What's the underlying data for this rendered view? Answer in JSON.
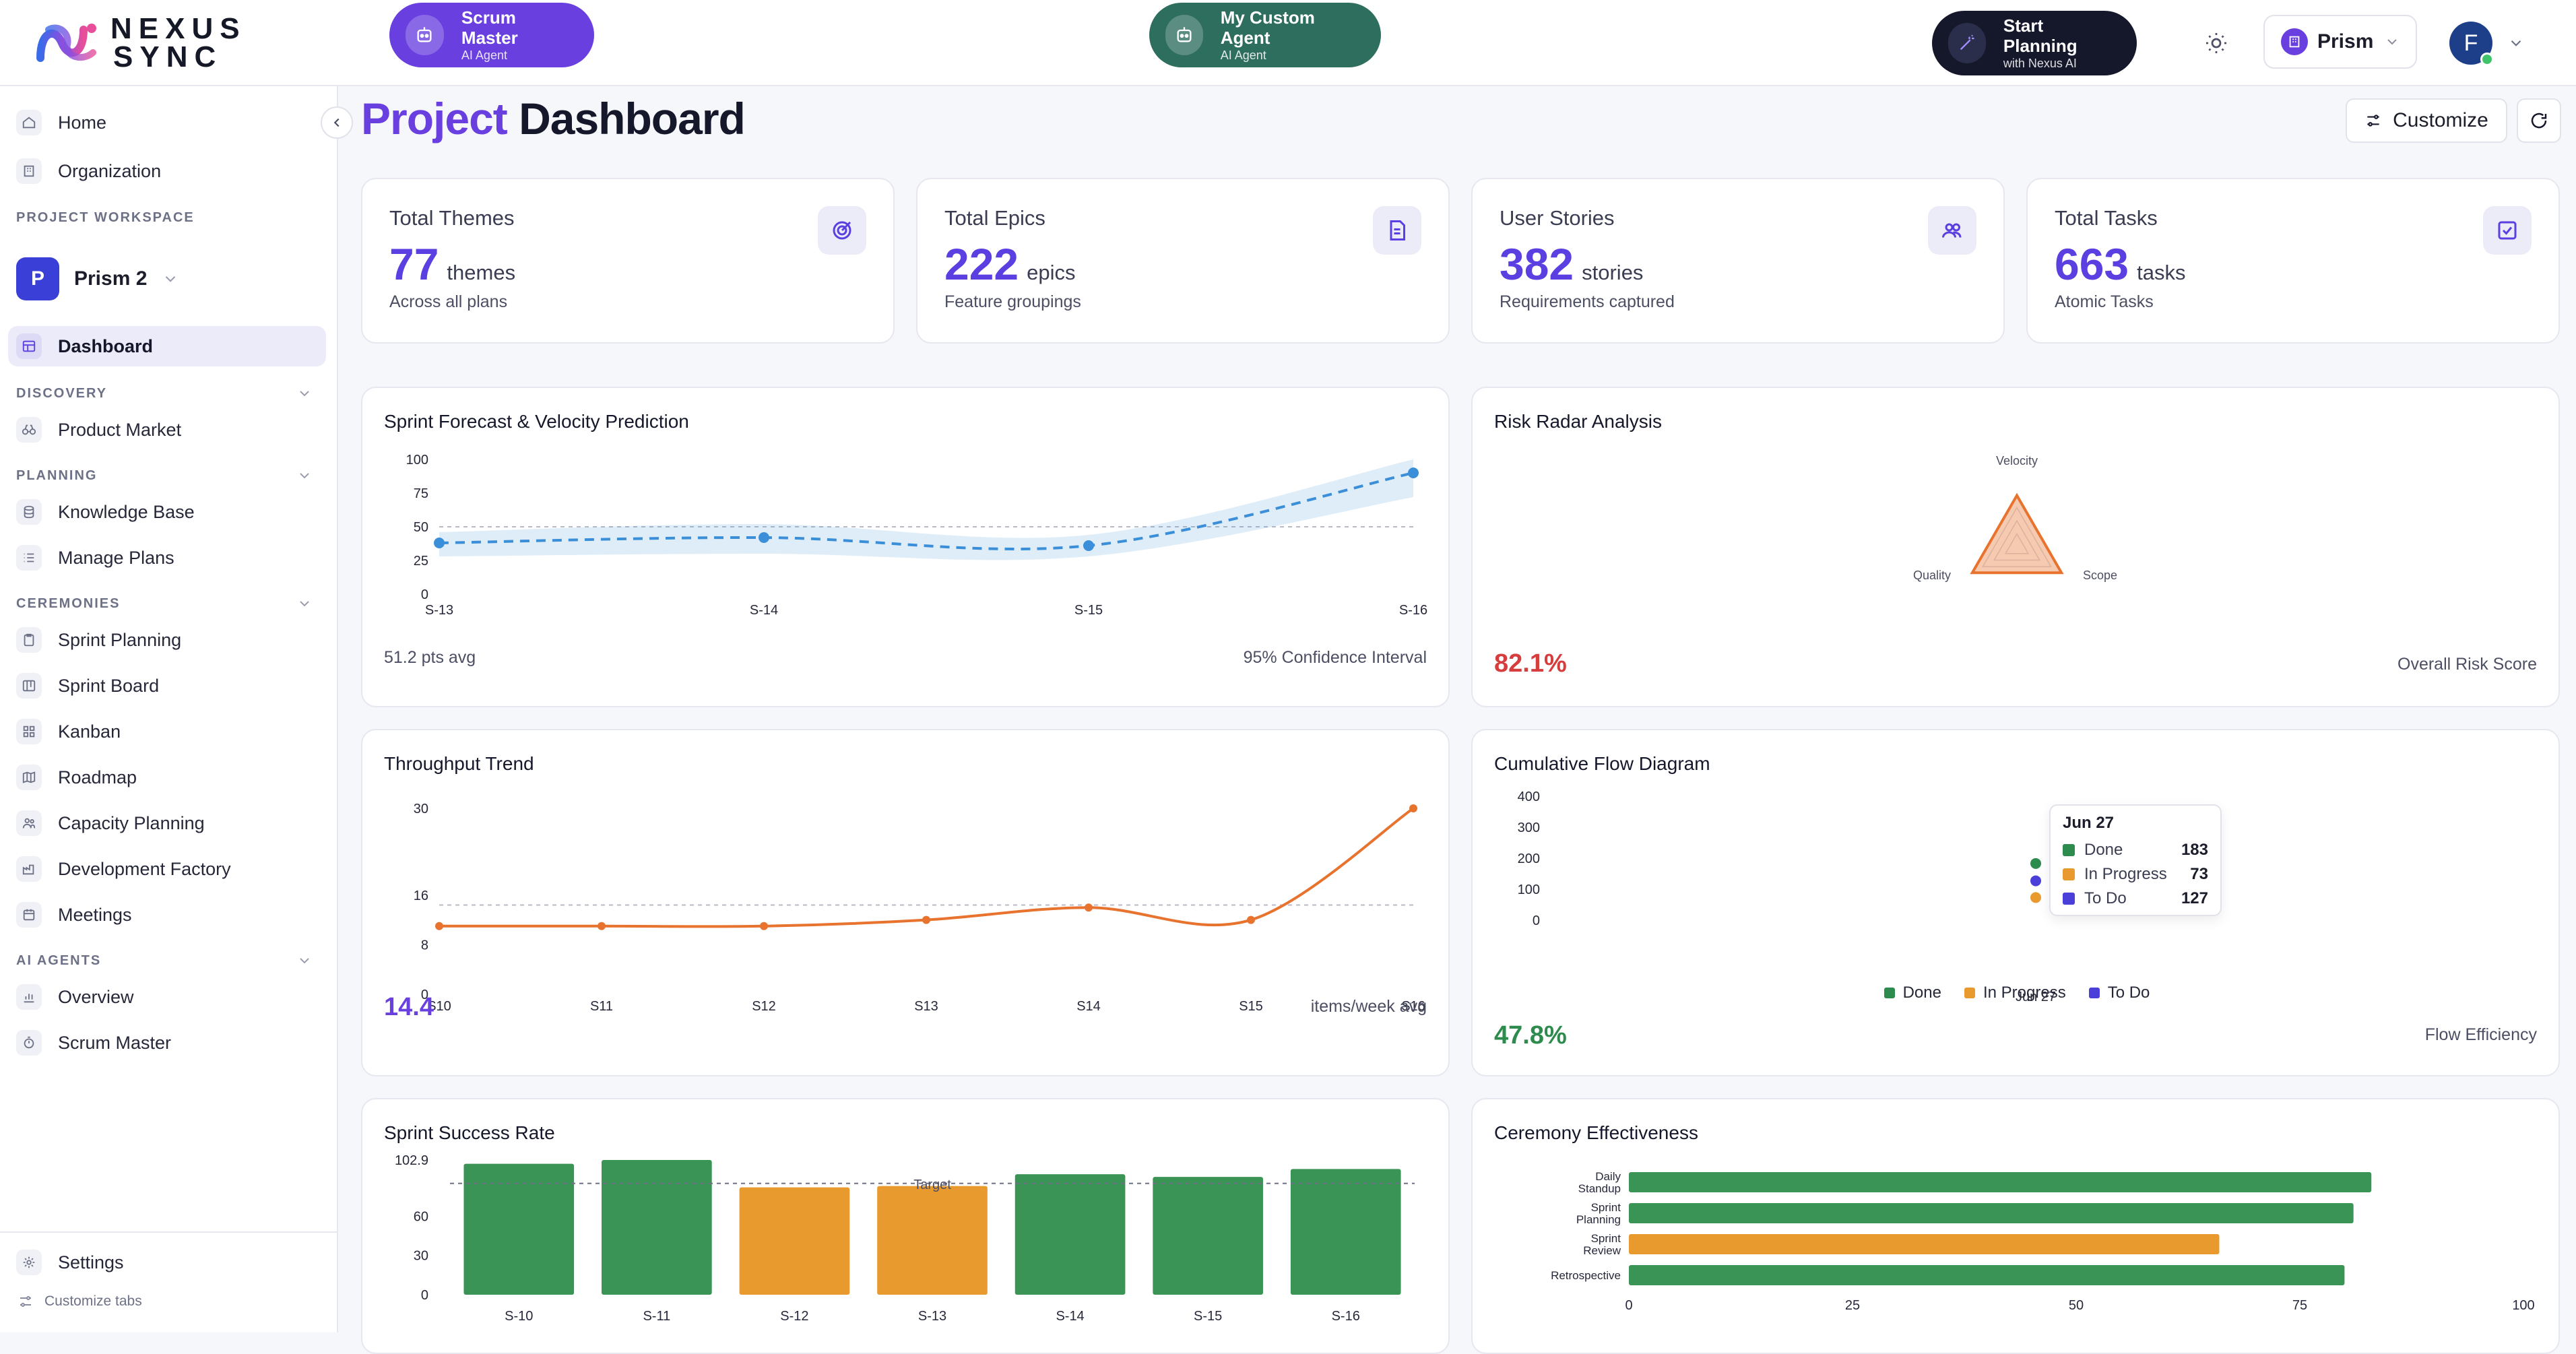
{
  "header": {
    "logo_line1": "NEXUS",
    "logo_line2": "SYNC",
    "agents": [
      {
        "title": "Scrum Master",
        "subtitle": "AI Agent",
        "color": "#6a3fe0"
      },
      {
        "title": "My Custom Agent",
        "subtitle": "AI Agent",
        "color": "#2e6e5f"
      }
    ],
    "start_planning": {
      "title": "Start Planning",
      "subtitle": "with Nexus AI"
    },
    "workspace_switch": "Prism",
    "avatar_initial": "F"
  },
  "sidebar": {
    "top_items": [
      {
        "label": "Home",
        "icon": "home-icon"
      },
      {
        "label": "Organization",
        "icon": "building-icon"
      }
    ],
    "workspace_heading": "PROJECT WORKSPACE",
    "project": {
      "initial": "P",
      "name": "Prism 2"
    },
    "dashboard_label": "Dashboard",
    "sections": [
      {
        "title": "DISCOVERY",
        "items": [
          {
            "label": "Product Market",
            "icon": "binoculars-icon"
          }
        ]
      },
      {
        "title": "PLANNING",
        "items": [
          {
            "label": "Knowledge Base",
            "icon": "database-icon"
          },
          {
            "label": "Manage Plans",
            "icon": "list-icon"
          }
        ]
      },
      {
        "title": "CEREMONIES",
        "items": [
          {
            "label": "Sprint Planning",
            "icon": "clipboard-icon"
          },
          {
            "label": "Sprint Board",
            "icon": "board-icon"
          },
          {
            "label": "Kanban",
            "icon": "kanban-icon"
          },
          {
            "label": "Roadmap",
            "icon": "map-icon"
          },
          {
            "label": "Capacity Planning",
            "icon": "users-icon"
          },
          {
            "label": "Development Factory",
            "icon": "factory-icon"
          },
          {
            "label": "Meetings",
            "icon": "calendar-icon"
          }
        ]
      },
      {
        "title": "AI AGENTS",
        "items": [
          {
            "label": "Overview",
            "icon": "chart-icon"
          },
          {
            "label": "Scrum Master",
            "icon": "timer-icon"
          }
        ]
      }
    ],
    "settings_label": "Settings",
    "customize_tabs_label": "Customize tabs"
  },
  "page": {
    "title_accent": "Project",
    "title_rest": "Dashboard",
    "customize_label": "Customize"
  },
  "stats": [
    {
      "label": "Total Themes",
      "value": "77",
      "unit": "themes",
      "sub": "Across all plans",
      "icon": "target-icon"
    },
    {
      "label": "Total Epics",
      "value": "222",
      "unit": "epics",
      "sub": "Feature groupings",
      "icon": "document-icon"
    },
    {
      "label": "User Stories",
      "value": "382",
      "unit": "stories",
      "sub": "Requirements captured",
      "icon": "users-icon"
    },
    {
      "label": "Total Tasks",
      "value": "663",
      "unit": "tasks",
      "sub": "Atomic Tasks",
      "icon": "checkbox-icon"
    }
  ],
  "cards": {
    "forecast": {
      "title": "Sprint Forecast & Velocity Prediction",
      "foot_left": "51.2 pts avg",
      "foot_right": "95% Confidence Interval"
    },
    "radar": {
      "title": "Risk Radar Analysis",
      "value": "82.1%",
      "value_color": "#d63d3d",
      "foot_right": "Overall Risk Score"
    },
    "throughput": {
      "title": "Throughput Trend",
      "value": "14.4",
      "value_color": "#6a3fe0",
      "foot_right": "items/week avg"
    },
    "cfd": {
      "title": "Cumulative Flow Diagram",
      "value": "47.8%",
      "value_color": "#2e8b4e",
      "foot_right": "Flow Efficiency"
    },
    "success": {
      "title": "Sprint Success Rate"
    },
    "ceremony": {
      "title": "Ceremony Effectiveness"
    }
  },
  "chart_data": [
    {
      "type": "line",
      "title": "Sprint Forecast & Velocity Prediction",
      "x": [
        "S-13",
        "S-14",
        "S-15",
        "S-16"
      ],
      "series": [
        {
          "values": [
            38,
            42,
            36,
            90
          ]
        }
      ],
      "confidence_band": {
        "lower": [
          28,
          30,
          28,
          72
        ],
        "upper": [
          46,
          52,
          44,
          100
        ]
      },
      "reference_line": 50,
      "yticks": [
        0,
        25,
        50,
        75,
        100
      ],
      "ylim": [
        0,
        100
      ],
      "color": "#3a8fd8"
    },
    {
      "type": "radar",
      "title": "Risk Radar Analysis",
      "axes": [
        "Velocity",
        "Scope",
        "Quality"
      ],
      "color": "#e8732f"
    },
    {
      "type": "line",
      "title": "Throughput Trend",
      "x": [
        "S10",
        "S11",
        "S12",
        "S13",
        "S14",
        "S15",
        "S16"
      ],
      "series": [
        {
          "values": [
            11,
            11,
            11,
            12,
            14,
            12,
            30
          ]
        }
      ],
      "reference_line": 14.4,
      "yticks": [
        0,
        8,
        16,
        30
      ],
      "ylim": [
        0,
        30
      ],
      "color": "#e8732f"
    },
    {
      "type": "scatter",
      "title": "Cumulative Flow Diagram",
      "x": [
        "Jun 27"
      ],
      "series": [
        {
          "name": "Done",
          "values": [
            183
          ],
          "color": "#2e8b4e"
        },
        {
          "name": "In Progress",
          "values": [
            73
          ],
          "color": "#e89a2f"
        },
        {
          "name": "To Do",
          "values": [
            127
          ],
          "color": "#4a3fd8"
        }
      ],
      "yticks": [
        0,
        100,
        200,
        300,
        400
      ],
      "ylim": [
        0,
        400
      ],
      "tooltip": {
        "title": "Jun 27"
      }
    },
    {
      "type": "bar",
      "title": "Sprint Success Rate",
      "categories": [
        "S-10",
        "S-11",
        "S-12",
        "S-13",
        "S-14",
        "S-15",
        "S-16"
      ],
      "values": [
        100,
        102.9,
        82,
        83,
        92,
        90,
        96
      ],
      "bar_colors": [
        "#3a9456",
        "#3a9456",
        "#e89a2f",
        "#e89a2f",
        "#3a9456",
        "#3a9456",
        "#3a9456"
      ],
      "target": 85,
      "target_label": "Target",
      "yticks": [
        0,
        30,
        60,
        102.9
      ],
      "ylim": [
        0,
        102.9
      ]
    },
    {
      "type": "bar",
      "orientation": "horizontal",
      "title": "Ceremony Effectiveness",
      "categories": [
        [
          "Daily",
          "Standup"
        ],
        [
          "Sprint",
          "Planning"
        ],
        [
          "Sprint",
          "Review"
        ],
        [
          "Retrospective"
        ]
      ],
      "values": [
        83,
        81,
        66,
        80
      ],
      "bar_colors": [
        "#3a9456",
        "#3a9456",
        "#e89a2f",
        "#3a9456"
      ],
      "xticks": [
        0,
        25,
        50,
        75,
        100
      ],
      "xlim": [
        0,
        100
      ]
    }
  ]
}
